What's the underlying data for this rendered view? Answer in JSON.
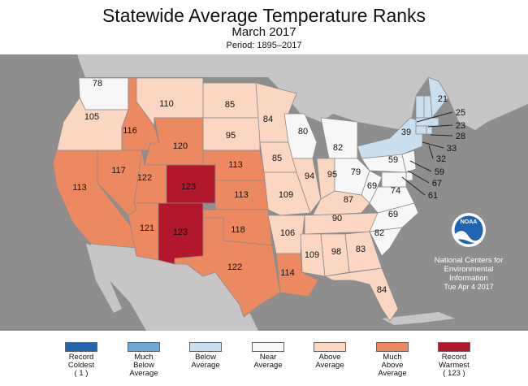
{
  "header": {
    "title": "Statewide Average Temperature Ranks",
    "subtitle": "March 2017",
    "period": "Period: 1895–2017"
  },
  "colors": {
    "ocean": "#8e8e8e",
    "foreign_land": "#c6c6c6",
    "state_border": "#8a8a8a",
    "record_coldest": "#1f64b1",
    "much_below": "#6ba8d8",
    "below": "#c9dff0",
    "near": "#f7f7f7",
    "above": "#fbd7c2",
    "much_above": "#ec8961",
    "record_warmest": "#b2172b"
  },
  "states": [
    {
      "abbr": "WA",
      "rank": "78",
      "category": "near"
    },
    {
      "abbr": "OR",
      "rank": "105",
      "category": "above"
    },
    {
      "abbr": "CA",
      "rank": "113",
      "category": "much_above"
    },
    {
      "abbr": "ID",
      "rank": "116",
      "category": "much_above"
    },
    {
      "abbr": "NV",
      "rank": "117",
      "category": "much_above"
    },
    {
      "abbr": "MT",
      "rank": "110",
      "category": "above"
    },
    {
      "abbr": "WY",
      "rank": "120",
      "category": "much_above"
    },
    {
      "abbr": "UT",
      "rank": "122",
      "category": "much_above"
    },
    {
      "abbr": "AZ",
      "rank": "121",
      "category": "much_above"
    },
    {
      "abbr": "CO",
      "rank": "123",
      "category": "record_warmest"
    },
    {
      "abbr": "NM",
      "rank": "123",
      "category": "record_warmest"
    },
    {
      "abbr": "ND",
      "rank": "85",
      "category": "above"
    },
    {
      "abbr": "SD",
      "rank": "95",
      "category": "above"
    },
    {
      "abbr": "NE",
      "rank": "113",
      "category": "much_above"
    },
    {
      "abbr": "KS",
      "rank": "113",
      "category": "much_above"
    },
    {
      "abbr": "OK",
      "rank": "118",
      "category": "much_above"
    },
    {
      "abbr": "TX",
      "rank": "122",
      "category": "much_above"
    },
    {
      "abbr": "MN",
      "rank": "84",
      "category": "above"
    },
    {
      "abbr": "IA",
      "rank": "85",
      "category": "above"
    },
    {
      "abbr": "MO",
      "rank": "109",
      "category": "above"
    },
    {
      "abbr": "AR",
      "rank": "106",
      "category": "above"
    },
    {
      "abbr": "LA",
      "rank": "114",
      "category": "much_above"
    },
    {
      "abbr": "WI",
      "rank": "80",
      "category": "near"
    },
    {
      "abbr": "IL",
      "rank": "94",
      "category": "above"
    },
    {
      "abbr": "MI",
      "rank": "82",
      "category": "near"
    },
    {
      "abbr": "IN",
      "rank": "95",
      "category": "above"
    },
    {
      "abbr": "OH",
      "rank": "79",
      "category": "near"
    },
    {
      "abbr": "KY",
      "rank": "87",
      "category": "above"
    },
    {
      "abbr": "TN",
      "rank": "90",
      "category": "above"
    },
    {
      "abbr": "MS",
      "rank": "109",
      "category": "above"
    },
    {
      "abbr": "AL",
      "rank": "98",
      "category": "above"
    },
    {
      "abbr": "GA",
      "rank": "83",
      "category": "above"
    },
    {
      "abbr": "FL",
      "rank": "84",
      "category": "above"
    },
    {
      "abbr": "SC",
      "rank": "82",
      "category": "near"
    },
    {
      "abbr": "NC",
      "rank": "69",
      "category": "near"
    },
    {
      "abbr": "VA",
      "rank": "74",
      "category": "near"
    },
    {
      "abbr": "WV",
      "rank": "69",
      "category": "near"
    },
    {
      "abbr": "PA",
      "rank": "59",
      "category": "near"
    },
    {
      "abbr": "NY",
      "rank": "39",
      "category": "below"
    },
    {
      "abbr": "VT",
      "rank": "25",
      "category": "below"
    },
    {
      "abbr": "NH",
      "rank": "23",
      "category": "below"
    },
    {
      "abbr": "ME",
      "rank": "21",
      "category": "below"
    },
    {
      "abbr": "MA",
      "rank": "28",
      "category": "below"
    },
    {
      "abbr": "CT",
      "rank": "33",
      "category": "below"
    },
    {
      "abbr": "RI",
      "rank": "32",
      "category": "below"
    },
    {
      "abbr": "NJ",
      "rank": "59",
      "category": "near"
    },
    {
      "abbr": "DE",
      "rank": "67",
      "category": "near"
    },
    {
      "abbr": "MD",
      "rank": "61",
      "category": "near"
    }
  ],
  "credit": {
    "logo_text": "NOAA",
    "line1": "National Centers for",
    "line2": "Environmental",
    "line3": "Information",
    "date": "Tue Apr  4 2017"
  },
  "legend": [
    {
      "key": "record_coldest",
      "line1": "Record",
      "line2": "Coldest",
      "line3": "( 1 )"
    },
    {
      "key": "much_below",
      "line1": "Much",
      "line2": "Below",
      "line3": "Average"
    },
    {
      "key": "below",
      "line1": "Below",
      "line2": "Average",
      "line3": ""
    },
    {
      "key": "near",
      "line1": "Near",
      "line2": "Average",
      "line3": ""
    },
    {
      "key": "above",
      "line1": "Above",
      "line2": "Average",
      "line3": ""
    },
    {
      "key": "much_above",
      "line1": "Much",
      "line2": "Above",
      "line3": "Average"
    },
    {
      "key": "record_warmest",
      "line1": "Record",
      "line2": "Warmest",
      "line3": "( 123 )"
    }
  ]
}
